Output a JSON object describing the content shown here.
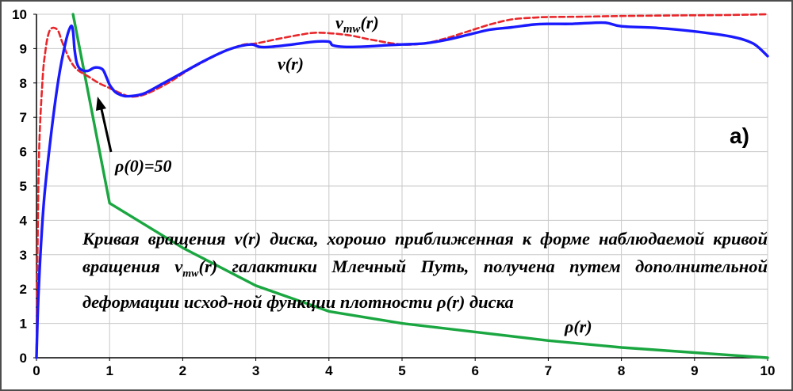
{
  "chart_data": {
    "type": "line",
    "panel_label": "а)",
    "xlim": [
      0,
      10
    ],
    "ylim": [
      0,
      10
    ],
    "x_ticks": [
      "0",
      "1",
      "2",
      "3",
      "4",
      "5",
      "6",
      "7",
      "8",
      "9",
      "10"
    ],
    "y_ticks": [
      "0",
      "1",
      "2",
      "3",
      "4",
      "5",
      "6",
      "7",
      "8",
      "9",
      "10"
    ],
    "grid": true,
    "series": [
      {
        "name": "v(r)",
        "color": "#1a1aff",
        "style": "solid",
        "x": [
          0,
          0.03,
          0.1,
          0.2,
          0.3,
          0.4,
          0.47,
          0.5,
          0.52,
          0.55,
          0.6,
          0.7,
          0.8,
          0.9,
          0.95,
          1.0,
          1.05,
          1.1,
          1.2,
          1.3,
          1.4,
          1.5,
          1.7,
          2.0,
          2.3,
          2.6,
          2.8,
          2.95,
          3.05,
          3.2,
          3.5,
          3.8,
          4.0,
          4.05,
          4.2,
          4.5,
          4.8,
          5.0,
          5.3,
          5.6,
          5.9,
          6.2,
          6.5,
          6.8,
          7.0,
          7.3,
          7.6,
          7.8,
          8.0,
          8.5,
          9.0,
          9.5,
          9.8,
          10.0
        ],
        "y": [
          0,
          2.0,
          4.5,
          6.5,
          8.1,
          9.2,
          9.65,
          9.5,
          9.0,
          8.6,
          8.4,
          8.35,
          8.45,
          8.4,
          8.2,
          7.95,
          7.8,
          7.7,
          7.62,
          7.62,
          7.65,
          7.72,
          7.95,
          8.3,
          8.65,
          8.95,
          9.08,
          9.12,
          9.05,
          9.05,
          9.12,
          9.2,
          9.2,
          9.1,
          9.05,
          9.06,
          9.1,
          9.12,
          9.15,
          9.25,
          9.4,
          9.55,
          9.62,
          9.7,
          9.72,
          9.72,
          9.75,
          9.75,
          9.65,
          9.6,
          9.5,
          9.35,
          9.15,
          8.78
        ]
      },
      {
        "name": "v_mw(r)",
        "color": "#e8262a",
        "style": "dashed",
        "x": [
          0,
          0.03,
          0.08,
          0.12,
          0.16,
          0.2,
          0.25,
          0.3,
          0.35,
          0.45,
          0.55,
          0.7,
          0.85,
          1.0,
          1.15,
          1.3,
          1.5,
          1.8,
          2.1,
          2.5,
          2.8,
          3.0,
          3.3,
          3.6,
          3.8,
          4.0,
          4.3,
          4.6,
          5.0,
          5.3,
          5.6,
          5.9,
          6.2,
          6.5,
          6.8,
          7.0,
          7.5,
          8.0,
          8.5,
          9.0,
          9.5,
          10.0
        ],
        "y": [
          0,
          5.5,
          8.0,
          8.9,
          9.4,
          9.58,
          9.6,
          9.5,
          9.2,
          8.7,
          8.4,
          8.2,
          8.0,
          7.85,
          7.7,
          7.6,
          7.68,
          8.0,
          8.4,
          8.85,
          9.1,
          9.15,
          9.28,
          9.4,
          9.46,
          9.45,
          9.38,
          9.25,
          9.12,
          9.15,
          9.3,
          9.5,
          9.7,
          9.85,
          9.9,
          9.92,
          9.93,
          9.95,
          9.96,
          9.97,
          9.98,
          10.0
        ]
      },
      {
        "name": "ρ(r)",
        "color": "#1aa640",
        "style": "solid",
        "x": [
          0.5,
          1.0,
          2.0,
          3.0,
          4.0,
          5.0,
          6.0,
          7.0,
          8.0,
          9.0,
          10.0
        ],
        "y": [
          10.0,
          4.5,
          3.2,
          2.1,
          1.35,
          1.0,
          0.75,
          0.5,
          0.3,
          0.15,
          0.0
        ]
      }
    ],
    "series_labels": {
      "v": "v(r)",
      "vmw_main": "v",
      "vmw_sub": "mw",
      "vmw_tail": "(r)",
      "rho": "ρ(r)",
      "rho0": "ρ(0)=50"
    }
  },
  "caption": {
    "part1": "Кривая вращения v(r) диска, хорошо приближенная к форме наблюдаемой кривой вращения v",
    "sub": "mw",
    "part2": "(r) галактики Млечный Путь, получена путем дополнительной деформации исход-ной функции плотности ρ(r) диска"
  }
}
